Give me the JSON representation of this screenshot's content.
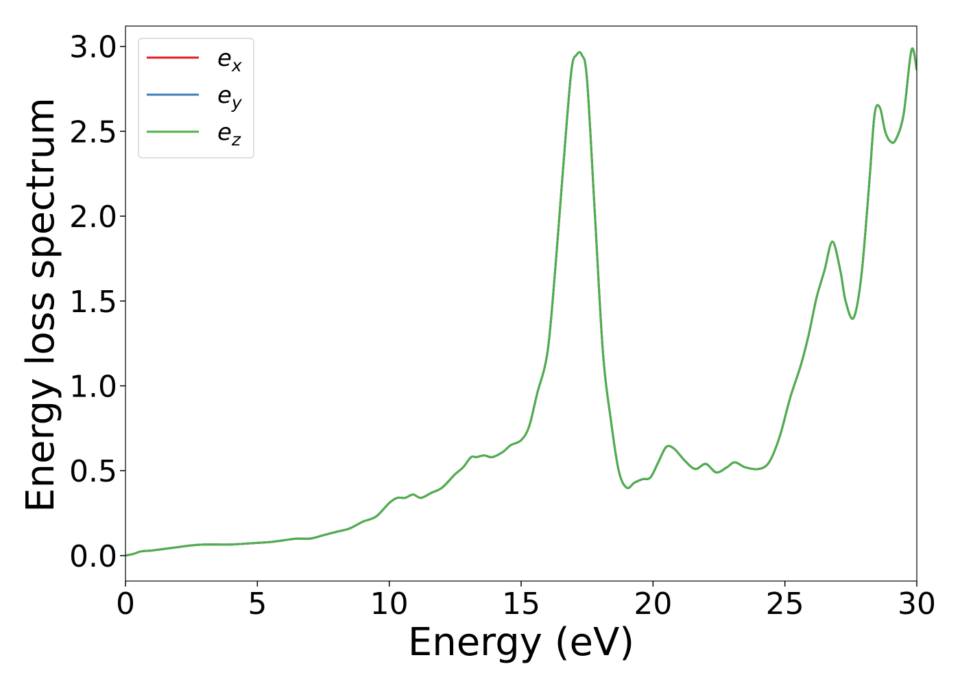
{
  "chart_data": {
    "type": "line",
    "title": "",
    "xlabel": "Energy (eV)",
    "ylabel": "Energy loss spectrum",
    "xlim": [
      0,
      30
    ],
    "ylim": [
      -0.15,
      3.12
    ],
    "xticks": [
      0,
      5,
      10,
      15,
      20,
      25,
      30
    ],
    "yticks": [
      0.0,
      0.5,
      1.0,
      1.5,
      2.0,
      2.5,
      3.0
    ],
    "xtick_labels": [
      "0",
      "5",
      "10",
      "15",
      "20",
      "25",
      "30"
    ],
    "ytick_labels": [
      "0.0",
      "0.5",
      "1.0",
      "1.5",
      "2.0",
      "2.5",
      "3.0"
    ],
    "grid": false,
    "legend_position": "top-left",
    "series": [
      {
        "name": "e",
        "subscript": "x",
        "color": "#e41a1c"
      },
      {
        "name": "e",
        "subscript": "y",
        "color": "#377eb8"
      },
      {
        "name": "e",
        "subscript": "z",
        "color": "#4daf4a"
      }
    ],
    "x": [
      0,
      0.3,
      0.6,
      1.0,
      1.5,
      2.0,
      2.5,
      3.0,
      3.5,
      4.0,
      4.5,
      5.0,
      5.5,
      6.0,
      6.5,
      7.0,
      7.5,
      8.0,
      8.5,
      9.0,
      9.5,
      10.0,
      10.3,
      10.6,
      10.9,
      11.2,
      11.6,
      12.0,
      12.5,
      12.8,
      13.1,
      13.3,
      13.6,
      13.9,
      14.3,
      14.6,
      15.0,
      15.3,
      15.6,
      16.0,
      16.3,
      16.6,
      16.9,
      17.1,
      17.3,
      17.5,
      17.8,
      18.1,
      18.4,
      18.7,
      19.0,
      19.3,
      19.6,
      19.9,
      20.2,
      20.5,
      20.8,
      21.2,
      21.6,
      22.0,
      22.4,
      22.8,
      23.1,
      23.5,
      24.0,
      24.4,
      24.8,
      25.2,
      25.6,
      25.9,
      26.2,
      26.5,
      26.8,
      27.1,
      27.3,
      27.6,
      27.9,
      28.2,
      28.4,
      28.6,
      28.8,
      29.0,
      29.2,
      29.5,
      29.8,
      30.0
    ],
    "y": [
      0.0,
      0.01,
      0.025,
      0.03,
      0.04,
      0.05,
      0.06,
      0.065,
      0.065,
      0.065,
      0.07,
      0.075,
      0.08,
      0.09,
      0.1,
      0.1,
      0.12,
      0.14,
      0.16,
      0.2,
      0.23,
      0.31,
      0.34,
      0.34,
      0.36,
      0.34,
      0.37,
      0.4,
      0.48,
      0.52,
      0.58,
      0.58,
      0.59,
      0.58,
      0.61,
      0.65,
      0.68,
      0.76,
      0.95,
      1.2,
      1.7,
      2.3,
      2.85,
      2.95,
      2.95,
      2.8,
      2.0,
      1.2,
      0.8,
      0.5,
      0.4,
      0.43,
      0.45,
      0.46,
      0.55,
      0.64,
      0.63,
      0.56,
      0.51,
      0.54,
      0.49,
      0.52,
      0.55,
      0.52,
      0.51,
      0.55,
      0.7,
      0.93,
      1.12,
      1.3,
      1.52,
      1.68,
      1.85,
      1.68,
      1.5,
      1.4,
      1.65,
      2.2,
      2.6,
      2.64,
      2.5,
      2.44,
      2.45,
      2.6,
      2.98,
      2.86
    ]
  }
}
